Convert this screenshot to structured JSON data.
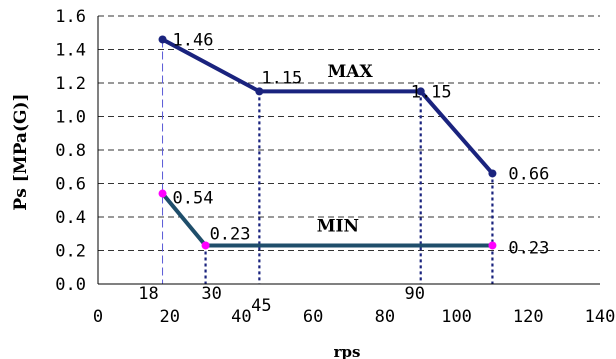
{
  "chart_data": {
    "type": "line",
    "title": "",
    "xlabel": "rps",
    "ylabel": "Ps [MPa(G)]",
    "xlim": [
      0,
      140
    ],
    "ylim": [
      0,
      1.6
    ],
    "x_ticks": [
      "0",
      "20",
      "40",
      "60",
      "80",
      "100",
      "120",
      "140"
    ],
    "y_ticks": [
      "0.0",
      "0.2",
      "0.4",
      "0.6",
      "0.8",
      "1.0",
      "1.2",
      "1.4",
      "1.6"
    ],
    "grid": "horizontal-dashed",
    "series": [
      {
        "name": "MAX",
        "color": "#1a237e",
        "marker_color": "#1a237e",
        "x": [
          18,
          45,
          90,
          110
        ],
        "y": [
          1.46,
          1.15,
          1.15,
          0.66
        ],
        "labels": [
          "1.46",
          "1.15",
          "1.15",
          "0.66"
        ]
      },
      {
        "name": "MIN",
        "color": "#1f4e6b",
        "marker_color": "#ff00ff",
        "x": [
          18,
          30,
          110
        ],
        "y": [
          0.54,
          0.23,
          0.23
        ],
        "labels": [
          "0.54",
          "0.23",
          "0.23"
        ]
      }
    ],
    "reference_x": [
      "18",
      "30",
      "45",
      "90",
      "110"
    ]
  }
}
